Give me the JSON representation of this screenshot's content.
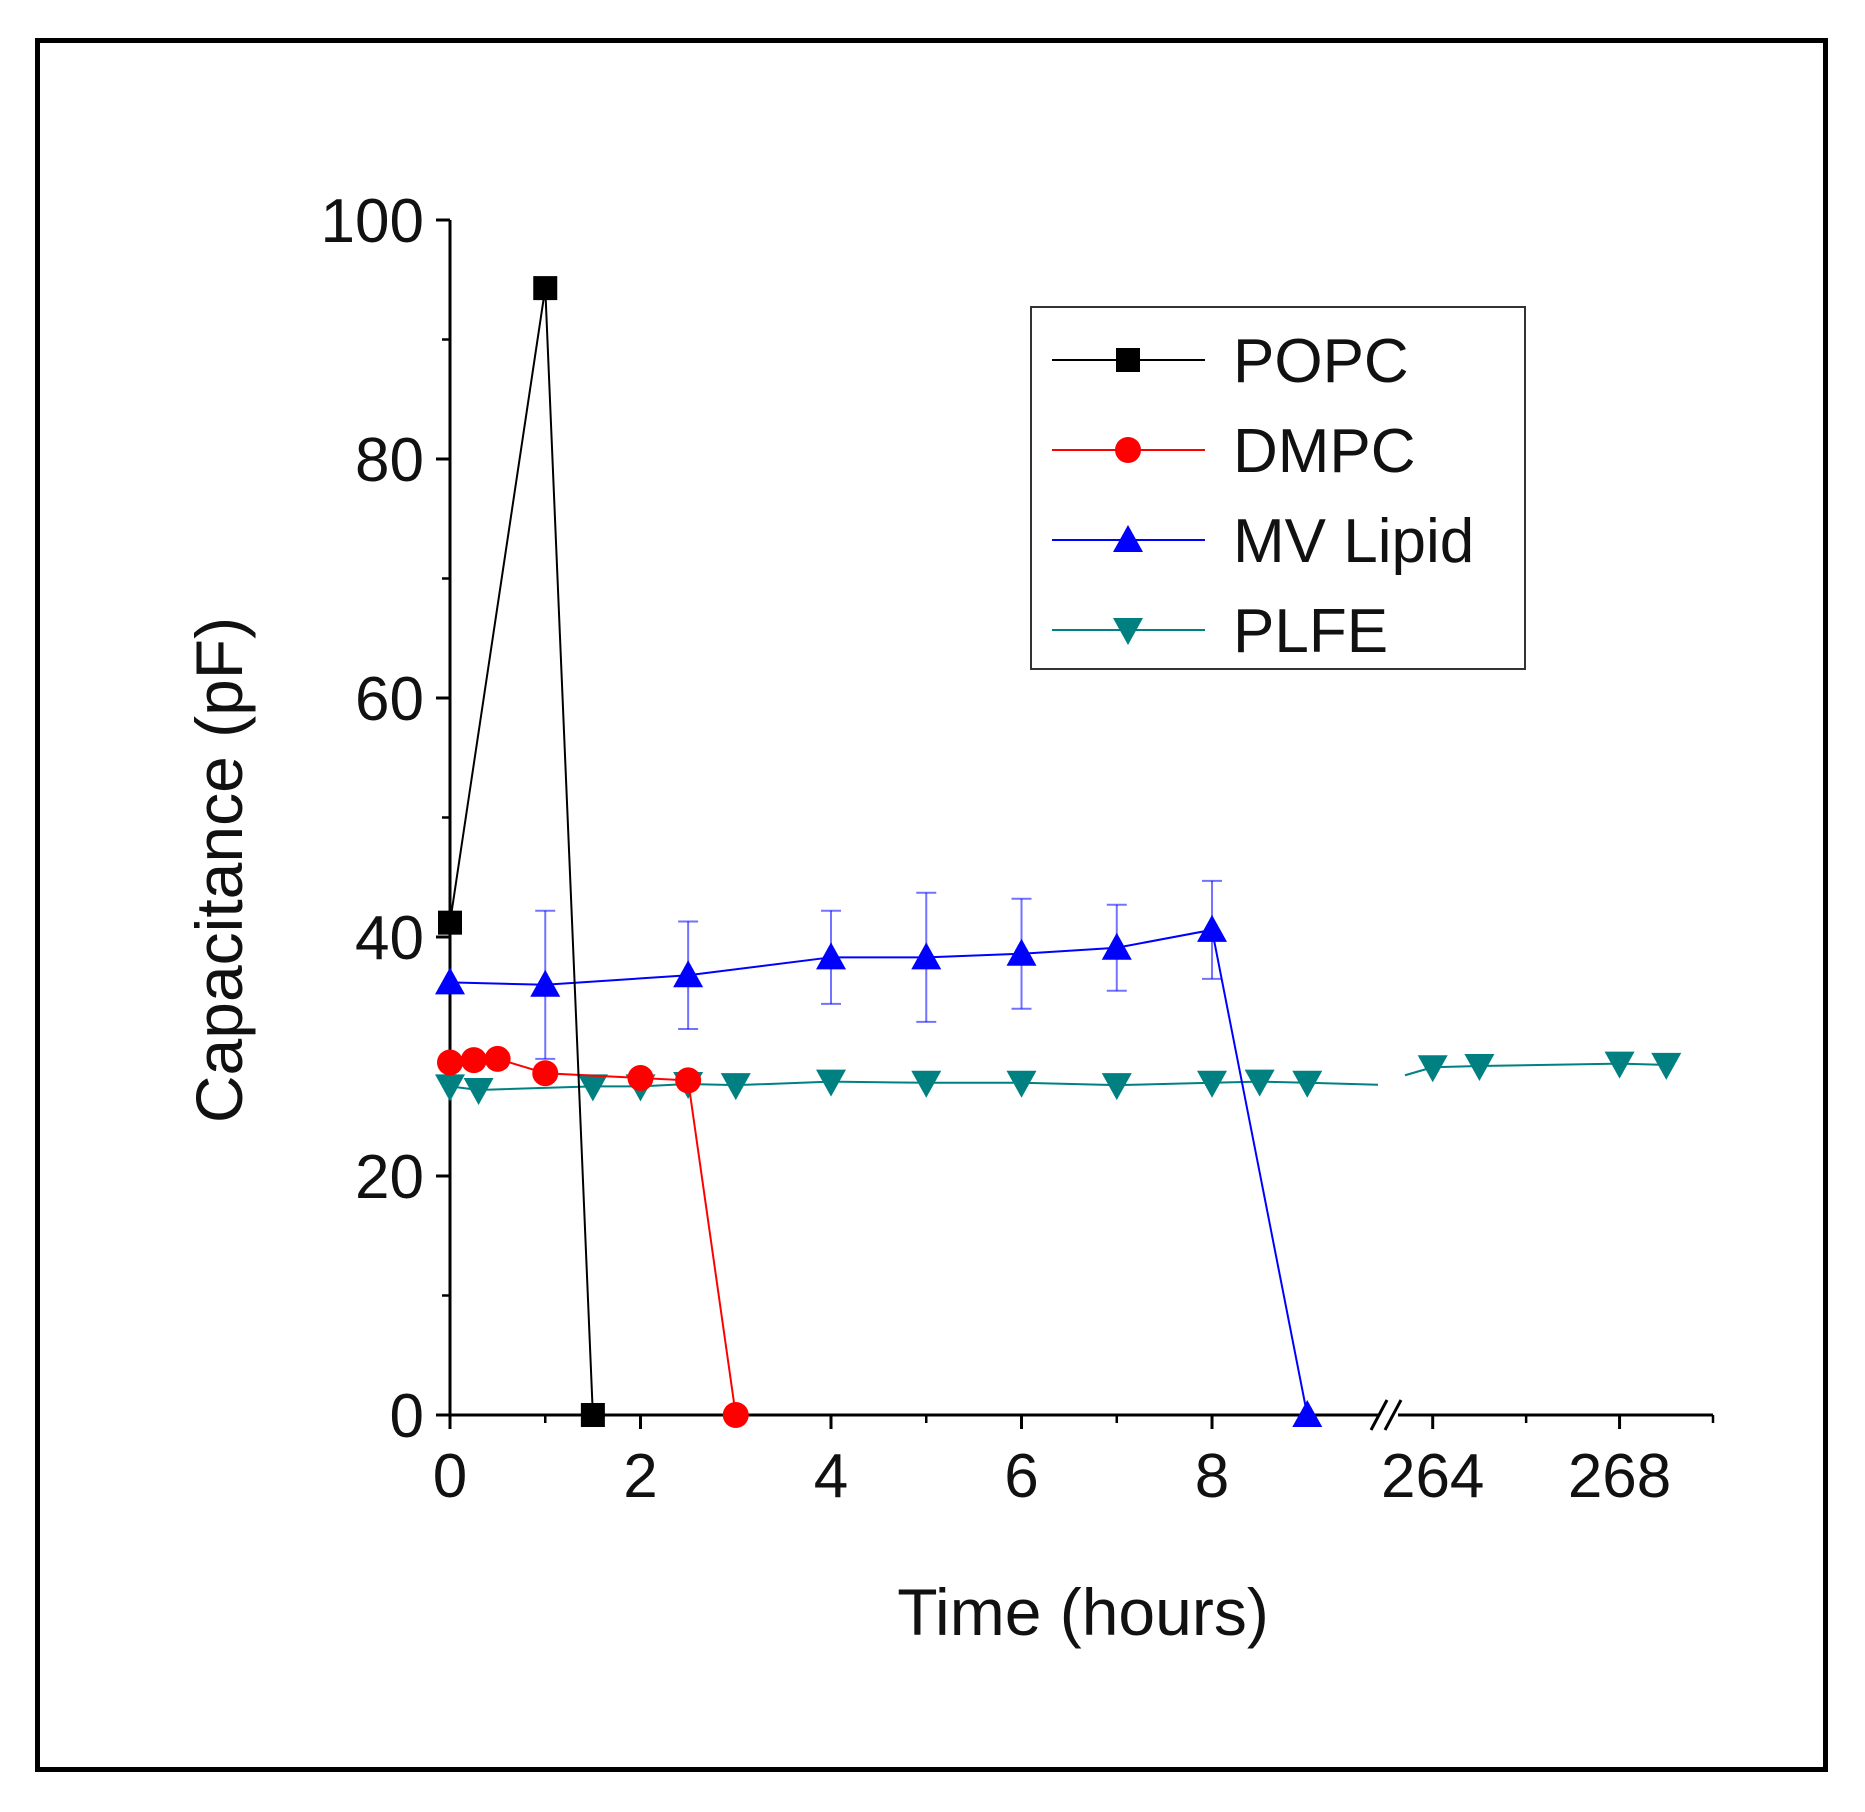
{
  "chart_data": {
    "type": "line",
    "title": "",
    "xlabel": "Time (hours)",
    "ylabel": "Capacitance (pF)",
    "ylim": [
      0,
      100
    ],
    "yticks": [
      0,
      20,
      40,
      60,
      80,
      100
    ],
    "xaxis": {
      "segments": [
        {
          "range": [
            0,
            9.9
          ],
          "ticks": [
            "0",
            "2",
            "4",
            "6",
            "8"
          ]
        },
        {
          "range": [
            263.3,
            270.0
          ],
          "ticks": [
            "264",
            "268"
          ]
        }
      ],
      "break_marker": "//"
    },
    "legend": {
      "position": "top-right"
    },
    "series": [
      {
        "name": "POPC",
        "color": "#000000",
        "marker": "square",
        "x": [
          0,
          1.0,
          1.5
        ],
        "y": [
          41.2,
          94.3,
          0
        ]
      },
      {
        "name": "DMPC",
        "color": "#ff0000",
        "marker": "circle",
        "x": [
          0,
          0.25,
          0.5,
          1.0,
          2.0,
          2.5,
          3.0
        ],
        "y": [
          29.5,
          29.7,
          29.8,
          28.6,
          28.2,
          28.0,
          0
        ]
      },
      {
        "name": "MV Lipid",
        "color": "#0000ff",
        "marker": "triangle-up",
        "x": [
          0,
          1.0,
          2.5,
          4.0,
          5.0,
          6.0,
          7.0,
          8.0,
          9.0
        ],
        "y": [
          36.2,
          36.0,
          36.8,
          38.3,
          38.3,
          38.6,
          39.1,
          40.6,
          0
        ],
        "error": [
          null,
          6.2,
          4.5,
          3.9,
          5.4,
          4.6,
          3.6,
          4.1,
          null
        ]
      },
      {
        "name": "PLFE",
        "color": "#008080",
        "marker": "triangle-down",
        "x": [
          0,
          0.3,
          1.5,
          2.0,
          2.5,
          3.0,
          4.0,
          5.0,
          6.0,
          7.0,
          8.0,
          8.5,
          9.0,
          264.0,
          265.0,
          268.0,
          269.0
        ],
        "y": [
          27.5,
          27.2,
          27.5,
          27.5,
          27.7,
          27.6,
          27.9,
          27.8,
          27.8,
          27.6,
          27.8,
          27.9,
          27.8,
          29.1,
          29.2,
          29.4,
          29.3
        ],
        "gap_after_index": 12
      }
    ]
  }
}
